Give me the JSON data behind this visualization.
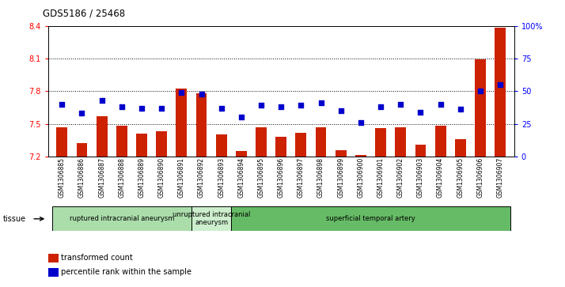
{
  "title": "GDS5186 / 25468",
  "samples": [
    "GSM1306885",
    "GSM1306886",
    "GSM1306887",
    "GSM1306888",
    "GSM1306889",
    "GSM1306890",
    "GSM1306891",
    "GSM1306892",
    "GSM1306893",
    "GSM1306894",
    "GSM1306895",
    "GSM1306896",
    "GSM1306897",
    "GSM1306898",
    "GSM1306899",
    "GSM1306900",
    "GSM1306901",
    "GSM1306902",
    "GSM1306903",
    "GSM1306904",
    "GSM1306905",
    "GSM1306906",
    "GSM1306907"
  ],
  "bar_values": [
    7.47,
    7.32,
    7.57,
    7.48,
    7.41,
    7.43,
    7.82,
    7.78,
    7.4,
    7.25,
    7.47,
    7.38,
    7.42,
    7.47,
    7.26,
    7.21,
    7.46,
    7.47,
    7.31,
    7.48,
    7.36,
    8.09,
    8.38
  ],
  "percentile_values": [
    40,
    33,
    43,
    38,
    37,
    37,
    49,
    48,
    37,
    30,
    39,
    38,
    39,
    41,
    35,
    26,
    38,
    40,
    34,
    40,
    36,
    50,
    55
  ],
  "bar_color": "#cc2200",
  "dot_color": "#0000cc",
  "ylim_left": [
    7.2,
    8.4
  ],
  "ylim_right": [
    0,
    100
  ],
  "yticks_left": [
    7.2,
    7.5,
    7.8,
    8.1,
    8.4
  ],
  "yticks_right": [
    0,
    25,
    50,
    75,
    100
  ],
  "ytick_labels_right": [
    "0",
    "25",
    "50",
    "75",
    "100%"
  ],
  "dotted_lines": [
    7.5,
    7.8,
    8.1
  ],
  "groups": [
    {
      "label": "ruptured intracranial aneurysm",
      "start": 0,
      "end": 7,
      "color": "#aaddaa"
    },
    {
      "label": "unruptured intracranial\naneurysm",
      "start": 7,
      "end": 9,
      "color": "#cceecc"
    },
    {
      "label": "superficial temporal artery",
      "start": 9,
      "end": 23,
      "color": "#66bb66"
    }
  ],
  "tissue_label": "tissue",
  "legend_bar_label": "transformed count",
  "legend_dot_label": "percentile rank within the sample",
  "plot_bg_color": "#ffffff",
  "xtick_bg_color": "#cccccc"
}
